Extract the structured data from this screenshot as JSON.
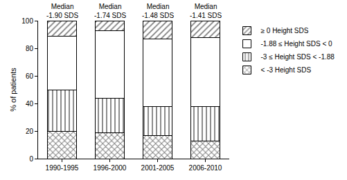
{
  "chart_data": {
    "type": "bar",
    "stacked": true,
    "categories": [
      "1990-1995",
      "1996-2000",
      "2001-2005",
      "2006-2010"
    ],
    "series": [
      {
        "name": "< -3 Height SDS",
        "color": "#ffffff",
        "marker": "crosshatch",
        "values": [
          20,
          19,
          17,
          13
        ]
      },
      {
        "name": "-3 ≤ Height SDS < -1.88",
        "color": "#ffffff",
        "marker": "vertical",
        "values": [
          30,
          25,
          21,
          25
        ]
      },
      {
        "name": "-1.88 ≤ Height SDS < 0",
        "color": "#ffffff",
        "marker": "none",
        "values": [
          39,
          49,
          49,
          50
        ]
      },
      {
        "name": "≥ 0 Height SDS",
        "color": "#ffffff",
        "marker": "diagonal",
        "values": [
          11,
          7,
          13,
          12
        ]
      }
    ],
    "y_label": "% of patients",
    "ylim": [
      0,
      100
    ],
    "yticks": [
      0,
      20,
      40,
      60,
      80,
      100
    ],
    "grid": false,
    "legend": "right",
    "annotations": [
      {
        "category": "1990-1995",
        "text": [
          "Median",
          "-1.90 SDS"
        ]
      },
      {
        "category": "1996-2000",
        "text": [
          "Median",
          "-1.74 SDS"
        ]
      },
      {
        "category": "2001-2005",
        "text": [
          "Median",
          "-1.48 SDS"
        ]
      },
      {
        "category": "2006-2010",
        "text": [
          "Median",
          "-1.41 SDS"
        ]
      }
    ]
  }
}
